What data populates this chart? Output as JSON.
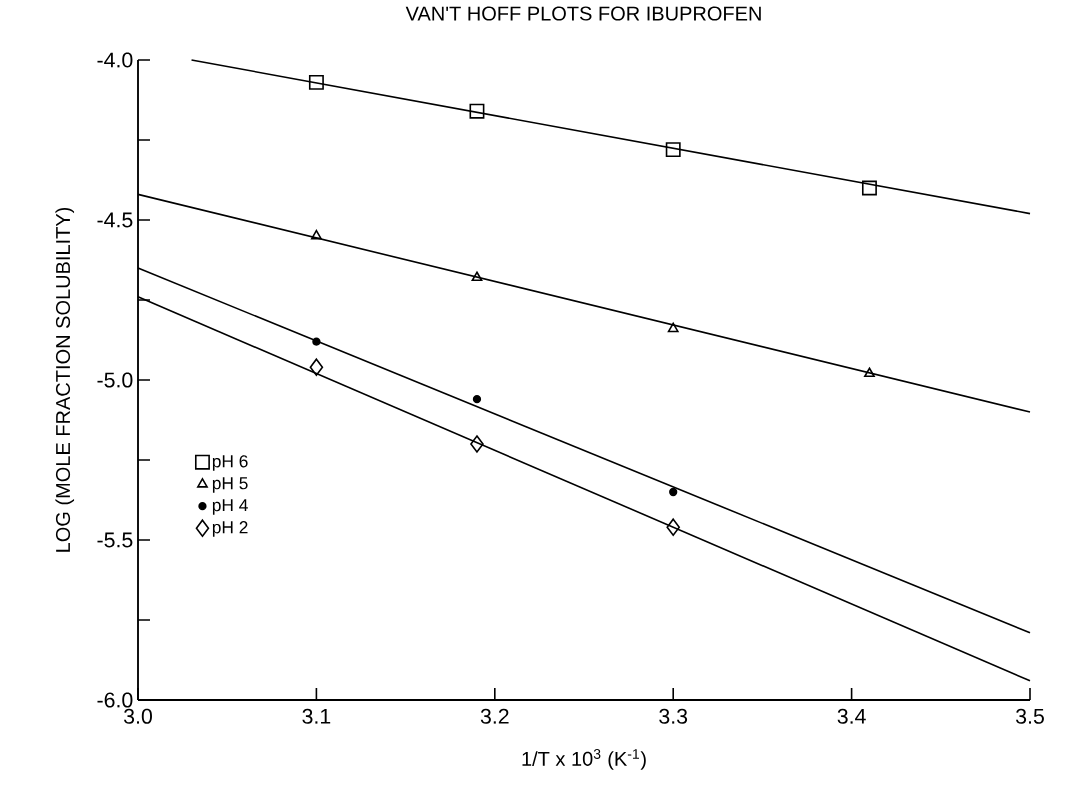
{
  "chart_data": {
    "type": "scatter",
    "title": "VAN'T HOFF PLOTS FOR IBUPROFEN",
    "xlabel": "1/T x 10$^{3}$ (K$^{-1}$)",
    "ylabel": "LOG (MOLE FRACTION SOLUBILITY)",
    "xlim": [
      3.0,
      3.5
    ],
    "ylim": [
      -6.0,
      -4.0
    ],
    "xticks": [
      {
        "value": 3.0,
        "label": "3.0"
      },
      3.1,
      3.2,
      3.3,
      3.4,
      3.5
    ],
    "yticks": [
      {
        "value": -6.0,
        "label": "-6.0"
      },
      {
        "value": -5.75,
        "label": null
      },
      {
        "value": -5.5,
        "label": "-5.5"
      },
      {
        "value": -5.25,
        "label": null
      },
      {
        "value": -5.0,
        "label": "-5.0"
      },
      {
        "value": -4.75,
        "label": null
      },
      {
        "value": -4.5,
        "label": "-4.5"
      },
      {
        "value": -4.25,
        "label": null
      },
      {
        "value": -4.0,
        "label": "-4.0"
      }
    ],
    "grid": false,
    "legend": "left",
    "series": [
      {
        "name": "pH 6",
        "marker": "square",
        "color": "#000000",
        "x": [
          3.1,
          3.19,
          3.3,
          3.41
        ],
        "values": [
          -4.07,
          -4.16,
          -4.28,
          -4.4
        ]
      },
      {
        "name": "pH 5",
        "marker": "triangle",
        "color": "#000000",
        "x": [
          3.1,
          3.19,
          3.3,
          3.41
        ],
        "values": [
          -4.55,
          -4.68,
          -4.84,
          -4.98
        ]
      },
      {
        "name": "pH 4",
        "marker": "circle",
        "color": "#000000",
        "x": [
          3.1,
          3.19,
          3.3
        ],
        "values": [
          -4.88,
          -5.06,
          -5.35
        ]
      },
      {
        "name": "pH 2",
        "marker": "diamond",
        "color": "#000000",
        "x": [
          3.1,
          3.19,
          3.3
        ],
        "values": [
          -4.96,
          -5.2,
          -5.46
        ]
      },
      {
        "type": "line",
        "marker": "none",
        "line_style": "solid",
        "color": "#000000",
        "x": [
          3.03,
          3.5
        ],
        "values": [
          -4.0,
          -4.48
        ]
      },
      {
        "type": "line",
        "marker": "none",
        "line_style": "solid",
        "color": "#000000",
        "x": [
          3.0,
          3.5
        ],
        "values": [
          -4.42,
          -5.1
        ]
      },
      {
        "type": "line",
        "marker": "none",
        "line_style": "solid",
        "color": "#000000",
        "x": [
          3.0,
          3.5
        ],
        "values": [
          -4.65,
          -5.79
        ]
      },
      {
        "type": "line",
        "marker": "none",
        "line_style": "solid",
        "color": "#000000",
        "x": [
          3.0,
          3.5
        ],
        "values": [
          -4.74,
          -5.94
        ]
      }
    ]
  }
}
